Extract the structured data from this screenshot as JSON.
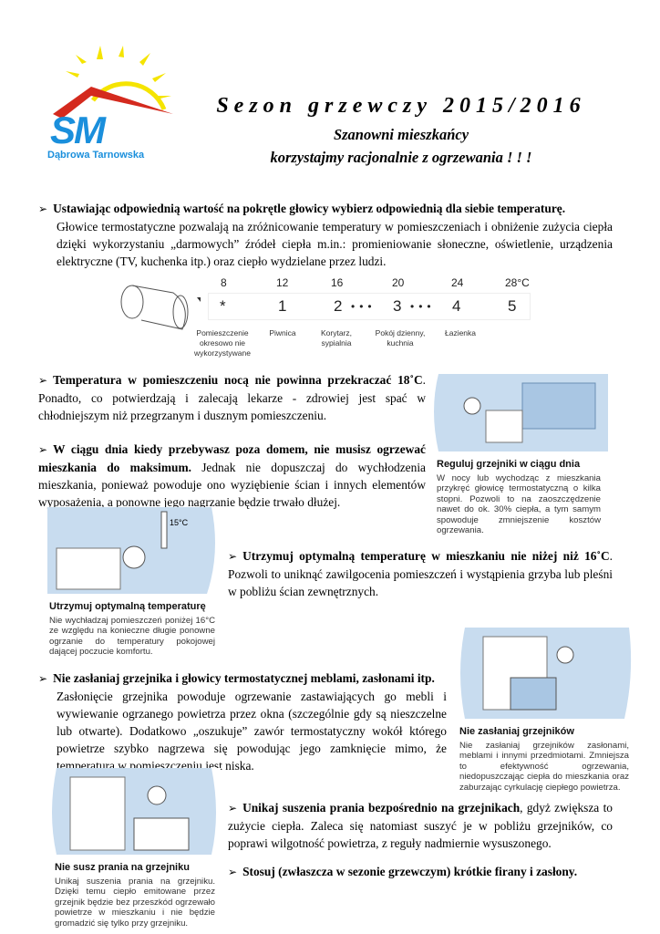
{
  "logo": {
    "text": "SM",
    "caption": "Dąbrowa Tarnowska",
    "colors": {
      "sun": "#f5e400",
      "roof": "#d42a1e",
      "sm": "#1a8fdc"
    }
  },
  "header": {
    "title": "Sezon grzewczy 2015/2016",
    "greeting": "Szanowni mieszkańcy",
    "appeal": "korzystajmy racjonalnie z ogrzewania ! ! !"
  },
  "sections": [
    {
      "bold": "Ustawiając odpowiednią wartość na pokrętle głowicy wybierz odpowiednią dla siebie temperaturę.",
      "text": "Głowice termostatyczne pozwalają na zróżnicowanie temperatury w pomieszczeniach i obniżenie zużycia ciepła dzięki wykorzystaniu „darmowych” źródeł ciepła m.in.: promieniowanie słoneczne, oświetlenie, urządzenia elektryczne (TV, kuchenka itp.) oraz ciepło wydzielane przez ludzi."
    },
    {
      "bold": "Temperatura w pomieszczeniu nocą nie powinna przekraczać 18˚C",
      "text": ". Ponadto, co potwierdzają i zalecają lekarze - zdrowiej jest spać w chłodniejszym niż przegrzanym i dusznym pomieszczeniu."
    },
    {
      "bold": "W ciągu dnia kiedy przebywasz poza domem, nie musisz ogrzewać mieszkania do maksimum.",
      "text": " Jednak nie dopuszczaj do wychłodzenia mieszkania, ponieważ powoduje ono wyziębienie ścian i innych elementów wyposażenia, a ponowne jego nagrzanie będzie trwało dłużej."
    },
    {
      "bold": "Utrzymuj optymalną temperaturę w mieszkaniu nie niżej niż 16˚C",
      "text": ". Pozwoli to uniknąć zawilgocenia pomieszczeń i wystąpienia grzyba lub pleśni w pobliżu ścian zewnętrznych."
    },
    {
      "bold": "Nie zasłaniaj grzejnika i głowicy termostatycznej meblami, zasłonami itp.",
      "text": "Zasłonięcie grzejnika powoduje ogrzewanie zastawiających go mebli i wywiewanie ogrzanego powietrza przez okna (szczególnie gdy są nieszczelne lub otwarte). Dodatkowo „oszukuje” zawór termostatyczny wokół którego powietrze szybko nagrzewa się powodując jego zamknięcie mimo, że temperatura w pomieszczeniu jest niska."
    },
    {
      "bold": "Unikaj suszenia prania bezpośrednio na grzejnikach",
      "text": ", gdyż zwiększa to zużycie ciepła. Zaleca się natomiast suszyć je w pobliżu grzejników, co poprawi wilgotność powietrza, z reguły nadmiernie wysuszonego."
    },
    {
      "bold": "Stosuj (zwłaszcza w sezonie grzewczym) krótkie firany i zasłony.",
      "text": ""
    }
  ],
  "thermostat": {
    "temps": [
      "8",
      "12",
      "16",
      "20",
      "24",
      "28°C"
    ],
    "settings": [
      "*",
      "1",
      "2",
      "3",
      "4",
      "5"
    ],
    "labels": [
      "Pomieszczenie okresowo nie wykorzystywane",
      "Piwnica",
      "Korytarz, sypialnia",
      "Pokój dzienny, kuchnia",
      "Łazienka"
    ]
  },
  "illustrations": [
    {
      "title": "Reguluj grzejniki w ciągu dnia",
      "text": "W nocy lub wychodząc z mieszkania przykręć głowicę termostatyczną o kilka stopni. Pozwoli to na zaoszczędzenie nawet do ok. 30% ciepła, a tym samym spowoduje zmniejszenie kosztów ogrzewania."
    },
    {
      "title": "Utrzymuj optymalną temperaturę",
      "text": "Nie wychładzaj pomieszczeń poniżej 16°C ze względu na konieczne długie ponowne ogrzanie do temperatury pokojowej dającej poczucie komfortu.",
      "thermometer": "15°C"
    },
    {
      "title": "Nie zasłaniaj grzejników",
      "text": "Nie zasłaniaj grzejników zasłonami, meblami i innymi przedmiotami. Zmniejsza to efektywność ogrzewania, niedopuszczając ciepła do mieszkania oraz zaburzając cyrkulację ciepłego powietrza."
    },
    {
      "title": "Nie susz prania na grzejniku",
      "text": "Unikaj suszenia prania na grzejniku. Dzięki temu ciepło emitowane przez grzejnik będzie bez przeszkód ogrzewało powietrze w mieszkaniu i nie będzie gromadzić się tylko przy grzejniku."
    }
  ],
  "bullet_icon": "arrow-right-bullet"
}
